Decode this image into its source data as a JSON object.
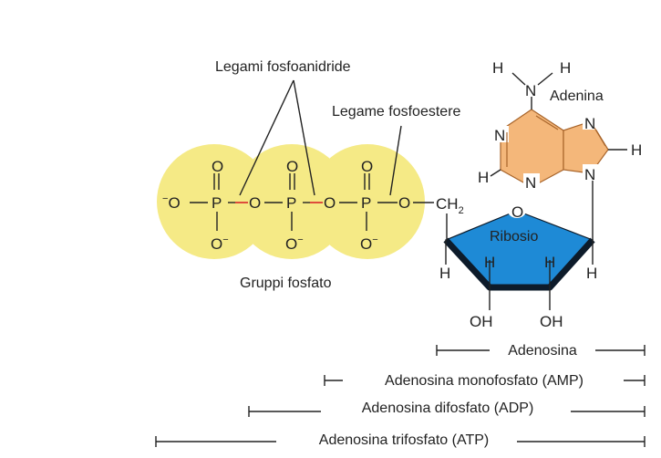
{
  "colors": {
    "phosphate_glow": "#f5ea86",
    "phosphate_edge": "#e8dc63",
    "adenine_fill": "#f4b77a",
    "adenine_edge": "#a8642a",
    "ribose_fill": "#1e8ad6",
    "ribose_dark": "#0d1b2a",
    "anhydride_bond": "#d9262b"
  },
  "labels": {
    "anhydride_bonds": "Legami fosfoanidride",
    "ester_bond": "Legame fosfoestere",
    "phosphate_groups": "Gruppi fosfato",
    "adenine": "Adenina",
    "ribose": "Ribosio"
  },
  "atoms": {
    "O": "O",
    "P": "P",
    "N": "N",
    "H": "H",
    "OH": "OH",
    "CH": "CH",
    "sub2": "2",
    "minus": "−"
  },
  "brackets": [
    {
      "label": "Adenosina"
    },
    {
      "label": "Adenosina monofosfato (AMP)"
    },
    {
      "label": "Adenosina difosfato (ADP)"
    },
    {
      "label": "Adenosina trifosfato (ATP)"
    }
  ]
}
